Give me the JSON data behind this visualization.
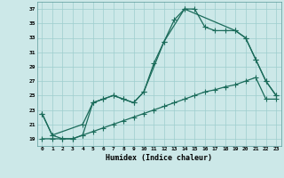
{
  "xlabel": "Humidex (Indice chaleur)",
  "background_color": "#cce8e8",
  "line_color": "#1a6b5a",
  "xlim": [
    -0.5,
    23.5
  ],
  "ylim": [
    18,
    38
  ],
  "xticks": [
    0,
    1,
    2,
    3,
    4,
    5,
    6,
    7,
    8,
    9,
    10,
    11,
    12,
    13,
    14,
    15,
    16,
    17,
    18,
    19,
    20,
    21,
    22,
    23
  ],
  "yticks": [
    19,
    21,
    23,
    25,
    27,
    29,
    31,
    33,
    35,
    37
  ],
  "line1_x": [
    0,
    1,
    2,
    3,
    4,
    5,
    6,
    7,
    8,
    9,
    10,
    11,
    12,
    13,
    14,
    15,
    16,
    17,
    18,
    19,
    20,
    21,
    22,
    23
  ],
  "line1_y": [
    22.5,
    19.5,
    19,
    19,
    19.5,
    24,
    24.5,
    25,
    24.5,
    24,
    25.5,
    29.5,
    32.5,
    35.5,
    37,
    37,
    34.5,
    34,
    34,
    34,
    33,
    30,
    27,
    25
  ],
  "line2_x": [
    0,
    1,
    4,
    5,
    6,
    7,
    8,
    9,
    10,
    12,
    14,
    19,
    20,
    21,
    22,
    23
  ],
  "line2_y": [
    22.5,
    19.5,
    21,
    24,
    24.5,
    25,
    24.5,
    24,
    25.5,
    32.5,
    37,
    34,
    33,
    30,
    27,
    25
  ],
  "line3_x": [
    0,
    1,
    2,
    3,
    4,
    5,
    6,
    7,
    8,
    9,
    10,
    11,
    12,
    13,
    14,
    15,
    16,
    17,
    18,
    19,
    20,
    21,
    22,
    23
  ],
  "line3_y": [
    19,
    19,
    19,
    19,
    19.5,
    20,
    20.5,
    21,
    21.5,
    22,
    22.5,
    23,
    23.5,
    24,
    24.5,
    25,
    25.5,
    25.8,
    26.2,
    26.5,
    27,
    27.5,
    24.5,
    24.5
  ]
}
